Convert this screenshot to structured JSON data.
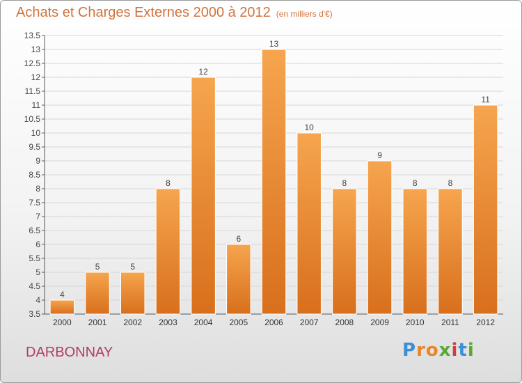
{
  "header": {
    "title": "Achats et Charges Externes 2000 à 2012",
    "subtitle": "(en milliers d'€)"
  },
  "commune": "DARBONNAY",
  "logo": {
    "letters": [
      "P",
      "r",
      "o",
      "x",
      "i",
      "t",
      "i"
    ],
    "colors": [
      "#3b8fd6",
      "#e8862a",
      "#e8862a",
      "#5aa832",
      "#d63b3b",
      "#3b8fd6",
      "#5aa832"
    ]
  },
  "colors": {
    "bar_top": "#f6a54e",
    "bar_bottom": "#d86f1c",
    "title": "#d0743c",
    "commune": "#b23c6a"
  },
  "chart_data": {
    "type": "bar",
    "title": "Achats et Charges Externes 2000 à 2012",
    "subtitle": "(en milliers d'€)",
    "categories": [
      "2000",
      "2001",
      "2002",
      "2003",
      "2004",
      "2005",
      "2006",
      "2007",
      "2008",
      "2009",
      "2010",
      "2011",
      "2012"
    ],
    "values": [
      4,
      5,
      5,
      8,
      12,
      6,
      13,
      10,
      8,
      9,
      8,
      8,
      11
    ],
    "value_labels": [
      "4",
      "5",
      "5",
      "8",
      "12",
      "6",
      "13",
      "10",
      "8",
      "9",
      "8",
      "8",
      "11"
    ],
    "ylim": [
      3.5,
      13.5
    ],
    "yticks": [
      "3.5",
      "4",
      "4.5",
      "5",
      "5.5",
      "6",
      "6.5",
      "7",
      "7.5",
      "8",
      "8.5",
      "9",
      "9.5",
      "10",
      "10.5",
      "11",
      "11.5",
      "12",
      "12.5",
      "13",
      "13.5"
    ],
    "grid": true,
    "legend": "none"
  }
}
